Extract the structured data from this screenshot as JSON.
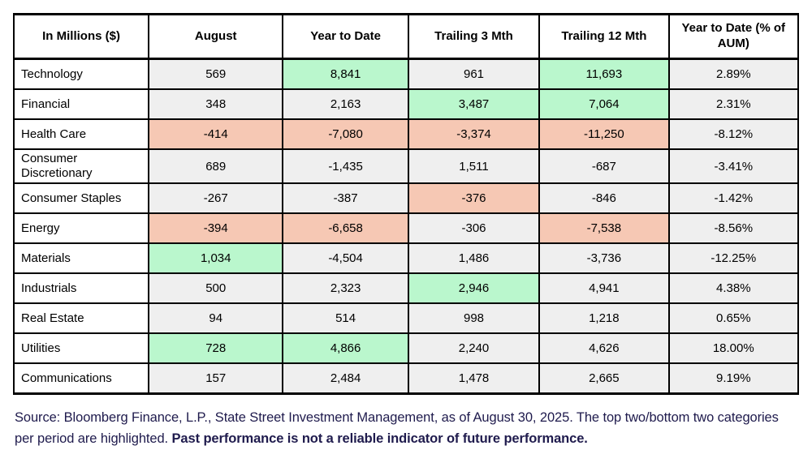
{
  "chart_data": {
    "type": "table",
    "title": "",
    "columns": [
      "In Millions ($)",
      "August",
      "Year to Date",
      "Trailing 3 Mth",
      "Trailing 12 Mth",
      "Year to Date (% of AUM)"
    ],
    "highlight_legend": {
      "green": "top two categories per period",
      "red": "bottom two categories per period"
    },
    "rows": [
      {
        "label": "Technology",
        "cells": [
          {
            "text": "569",
            "value": 569,
            "highlight": ""
          },
          {
            "text": "8,841",
            "value": 8841,
            "highlight": "green"
          },
          {
            "text": "961",
            "value": 961,
            "highlight": ""
          },
          {
            "text": "11,693",
            "value": 11693,
            "highlight": "green"
          },
          {
            "text": "2.89%",
            "value": 2.89,
            "highlight": ""
          }
        ]
      },
      {
        "label": "Financial",
        "cells": [
          {
            "text": "348",
            "value": 348,
            "highlight": ""
          },
          {
            "text": "2,163",
            "value": 2163,
            "highlight": ""
          },
          {
            "text": "3,487",
            "value": 3487,
            "highlight": "green"
          },
          {
            "text": "7,064",
            "value": 7064,
            "highlight": "green"
          },
          {
            "text": "2.31%",
            "value": 2.31,
            "highlight": ""
          }
        ]
      },
      {
        "label": "Health Care",
        "cells": [
          {
            "text": "-414",
            "value": -414,
            "highlight": "red"
          },
          {
            "text": "-7,080",
            "value": -7080,
            "highlight": "red"
          },
          {
            "text": "-3,374",
            "value": -3374,
            "highlight": "red"
          },
          {
            "text": "-11,250",
            "value": -11250,
            "highlight": "red"
          },
          {
            "text": "-8.12%",
            "value": -8.12,
            "highlight": ""
          }
        ]
      },
      {
        "label": "Consumer Discretionary",
        "cells": [
          {
            "text": "689",
            "value": 689,
            "highlight": ""
          },
          {
            "text": "-1,435",
            "value": -1435,
            "highlight": ""
          },
          {
            "text": "1,511",
            "value": 1511,
            "highlight": ""
          },
          {
            "text": "-687",
            "value": -687,
            "highlight": ""
          },
          {
            "text": "-3.41%",
            "value": -3.41,
            "highlight": ""
          }
        ]
      },
      {
        "label": "Consumer Staples",
        "cells": [
          {
            "text": "-267",
            "value": -267,
            "highlight": ""
          },
          {
            "text": "-387",
            "value": -387,
            "highlight": ""
          },
          {
            "text": "-376",
            "value": -376,
            "highlight": "red"
          },
          {
            "text": "-846",
            "value": -846,
            "highlight": ""
          },
          {
            "text": "-1.42%",
            "value": -1.42,
            "highlight": ""
          }
        ]
      },
      {
        "label": "Energy",
        "cells": [
          {
            "text": "-394",
            "value": -394,
            "highlight": "red"
          },
          {
            "text": "-6,658",
            "value": -6658,
            "highlight": "red"
          },
          {
            "text": "-306",
            "value": -306,
            "highlight": ""
          },
          {
            "text": "-7,538",
            "value": -7538,
            "highlight": "red"
          },
          {
            "text": "-8.56%",
            "value": -8.56,
            "highlight": ""
          }
        ]
      },
      {
        "label": "Materials",
        "cells": [
          {
            "text": "1,034",
            "value": 1034,
            "highlight": "green"
          },
          {
            "text": "-4,504",
            "value": -4504,
            "highlight": ""
          },
          {
            "text": "1,486",
            "value": 1486,
            "highlight": ""
          },
          {
            "text": "-3,736",
            "value": -3736,
            "highlight": ""
          },
          {
            "text": "-12.25%",
            "value": -12.25,
            "highlight": ""
          }
        ]
      },
      {
        "label": "Industrials",
        "cells": [
          {
            "text": "500",
            "value": 500,
            "highlight": ""
          },
          {
            "text": "2,323",
            "value": 2323,
            "highlight": ""
          },
          {
            "text": "2,946",
            "value": 2946,
            "highlight": "green"
          },
          {
            "text": "4,941",
            "value": 4941,
            "highlight": ""
          },
          {
            "text": "4.38%",
            "value": 4.38,
            "highlight": ""
          }
        ]
      },
      {
        "label": "Real Estate",
        "cells": [
          {
            "text": "94",
            "value": 94,
            "highlight": ""
          },
          {
            "text": "514",
            "value": 514,
            "highlight": ""
          },
          {
            "text": "998",
            "value": 998,
            "highlight": ""
          },
          {
            "text": "1,218",
            "value": 1218,
            "highlight": ""
          },
          {
            "text": "0.65%",
            "value": 0.65,
            "highlight": ""
          }
        ]
      },
      {
        "label": "Utilities",
        "cells": [
          {
            "text": "728",
            "value": 728,
            "highlight": "green"
          },
          {
            "text": "4,866",
            "value": 4866,
            "highlight": "green"
          },
          {
            "text": "2,240",
            "value": 2240,
            "highlight": ""
          },
          {
            "text": "4,626",
            "value": 4626,
            "highlight": ""
          },
          {
            "text": "18.00%",
            "value": 18.0,
            "highlight": ""
          }
        ]
      },
      {
        "label": "Communications",
        "cells": [
          {
            "text": "157",
            "value": 157,
            "highlight": ""
          },
          {
            "text": "2,484",
            "value": 2484,
            "highlight": ""
          },
          {
            "text": "1,478",
            "value": 1478,
            "highlight": ""
          },
          {
            "text": "2,665",
            "value": 2665,
            "highlight": ""
          },
          {
            "text": "9.19%",
            "value": 9.19,
            "highlight": ""
          }
        ]
      }
    ]
  },
  "footer": {
    "text_normal": "Source: Bloomberg Finance, L.P., State Street Investment Management, as of August 30, 2025. The top two/bottom two categories per period are highlighted. ",
    "text_bold": "Past performance is not a reliable indicator of future performance."
  },
  "colors": {
    "highlight_positive": "#baf7cd",
    "highlight_negative": "#f6c8b4",
    "cell_default": "#efefef",
    "footer_text": "#1f1b4d",
    "border": "#000000"
  }
}
